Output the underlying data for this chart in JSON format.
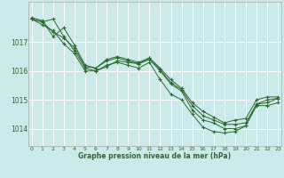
{
  "title": "Graphe pression niveau de la mer (hPa)",
  "bg_color": "#cdeaea",
  "grid_color": "#ffffff",
  "line_color": "#2d6a2d",
  "marker_color": "#2d6a2d",
  "ylabel_ticks": [
    1014,
    1015,
    1016,
    1017
  ],
  "xlim": [
    -0.3,
    23.3
  ],
  "ylim": [
    1013.4,
    1018.4
  ],
  "series": [
    [
      1017.8,
      1017.7,
      1017.8,
      1017.2,
      1016.7,
      1016.1,
      1016.0,
      1016.15,
      1016.35,
      1016.3,
      1016.25,
      1016.4,
      1016.0,
      1015.55,
      1015.3,
      1014.65,
      1014.3,
      1014.2,
      1014.0,
      1014.0,
      1014.1,
      1014.85,
      1014.9,
      1015.05
    ],
    [
      1017.8,
      1017.6,
      1017.4,
      1016.95,
      1016.6,
      1016.0,
      1016.0,
      1016.2,
      1016.3,
      1016.2,
      1016.1,
      1016.3,
      1015.7,
      1015.2,
      1015.0,
      1014.5,
      1014.05,
      1013.9,
      1013.85,
      1013.9,
      1014.1,
      1014.8,
      1014.8,
      1014.9
    ],
    [
      1017.8,
      1017.7,
      1017.35,
      1017.15,
      1016.8,
      1016.15,
      1016.1,
      1016.35,
      1016.45,
      1016.35,
      1016.25,
      1016.45,
      1016.05,
      1015.6,
      1015.35,
      1014.8,
      1014.45,
      1014.3,
      1014.15,
      1014.15,
      1014.2,
      1014.85,
      1015.0,
      1015.05
    ],
    [
      1017.85,
      1017.75,
      1017.2,
      1017.5,
      1016.9,
      1016.2,
      1016.1,
      1016.4,
      1016.5,
      1016.4,
      1016.3,
      1016.45,
      1016.1,
      1015.7,
      1015.4,
      1014.9,
      1014.6,
      1014.4,
      1014.2,
      1014.3,
      1014.35,
      1015.0,
      1015.1,
      1015.1
    ]
  ]
}
